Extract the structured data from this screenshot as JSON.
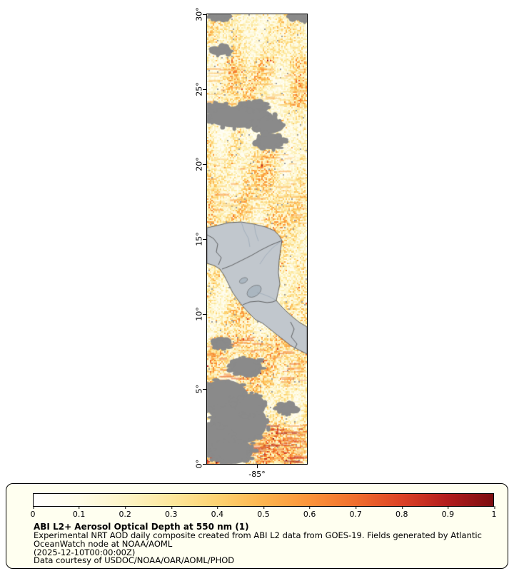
{
  "map": {
    "y_ticks": [
      "30°",
      "25°",
      "20°",
      "15°",
      "10°",
      "5°",
      "0°"
    ],
    "x_ticks": [
      "-85°"
    ],
    "colors": {
      "land": "#c1c7cd",
      "lake": "#aab6c0",
      "no_data": "#8a8a8a",
      "coast": "#444444",
      "border": "#333333",
      "river": "#8fa0b0"
    }
  },
  "legend": {
    "ticks": [
      "0",
      "0.1",
      "0.2",
      "0.3",
      "0.4",
      "0.5",
      "0.6",
      "0.7",
      "0.8",
      "0.9",
      "1"
    ],
    "title": "ABI L2+ Aerosol Optical Depth at 550 nm (1)",
    "desc_line1": "Experimental NRT AOD daily composite created from ABI L2 data from GOES-19. Fields generated by Atlantic",
    "desc_line2": "OceanWatch node at NOAA/AOML",
    "timestamp": "(2025-12-10T00:00:00Z)",
    "credit": "Data courtesy of USDOC/NOAA/OAR/AOML/PHOD",
    "panel_bg": "#fffff0",
    "colormap": [
      "#ffffff",
      "#fffce8",
      "#fdf4c6",
      "#fde79c",
      "#fdd271",
      "#fdb44e",
      "#fb9339",
      "#f06e2d",
      "#dc4226",
      "#b21c1d",
      "#7c0d10"
    ]
  },
  "chart_data": {
    "type": "heatmap",
    "title": "ABI L2+ Aerosol Optical Depth at 550 nm (1)",
    "variable": "Aerosol Optical Depth at 550 nm",
    "source": "ABI L2 data from GOES-19",
    "time": "2025-12-10T00:00:00Z",
    "colorbar_range": [
      0,
      1
    ],
    "colorbar_ticks": [
      0,
      0.1,
      0.2,
      0.3,
      0.4,
      0.5,
      0.6,
      0.7,
      0.8,
      0.9,
      1
    ],
    "lat_ticks_deg": [
      30,
      25,
      20,
      15,
      10,
      5,
      0
    ],
    "lon_tick_deg": -85,
    "legend_position": "bottom"
  }
}
